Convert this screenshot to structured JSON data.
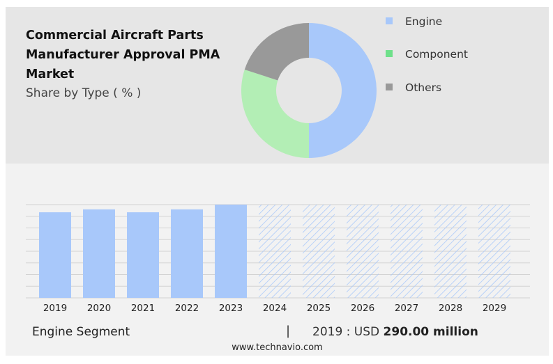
{
  "chart_data": [
    {
      "type": "pie",
      "title": "Commercial Aircraft Parts Manufacturer Approval PMA Market",
      "subtitle": "Share by Type ( % )",
      "categories": [
        "Engine",
        "Component",
        "Others"
      ],
      "values": [
        50,
        30,
        20
      ],
      "colors": [
        "#a8c8fa",
        "#b3eeb5",
        "#999999"
      ],
      "legend_colors": [
        "#a8c8fa",
        "#6ee08a",
        "#999999"
      ],
      "legend": "right"
    },
    {
      "type": "bar",
      "categories": [
        "2019",
        "2020",
        "2021",
        "2022",
        "2023",
        "2024",
        "2025",
        "2026",
        "2027",
        "2028",
        "2029"
      ],
      "values": [
        290,
        300,
        290,
        300,
        316,
        null,
        null,
        null,
        null,
        null,
        null
      ],
      "forecast_years": [
        "2024",
        "2025",
        "2026",
        "2027",
        "2028",
        "2029"
      ],
      "ylim": [
        0,
        316
      ],
      "grid": true,
      "bar_color": "#a8c8fa",
      "xlabel": "",
      "ylabel": ""
    }
  ],
  "footer": {
    "segment": "Engine Segment",
    "separator": "|",
    "value_prefix": "2019 : USD",
    "value": "290.00 million",
    "source": "www.technavio.com"
  }
}
